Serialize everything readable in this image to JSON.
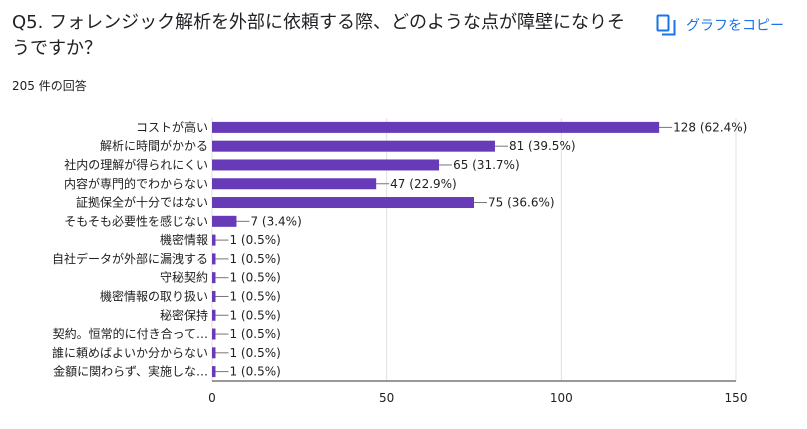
{
  "question": {
    "title": "Q5. フォレンジック解析を外部に依頼する際、どのような点が障壁になりそうですか？",
    "response_count": "205 件の回答"
  },
  "copy_button": {
    "label": "グラフをコピー",
    "icon": "copy-icon"
  },
  "colors": {
    "bar": "#673ab7",
    "accent": "#1a73e8",
    "grid": "#e0e0e0"
  },
  "chart_data": {
    "type": "bar",
    "orientation": "horizontal",
    "categories": [
      "コストが高い",
      "解析に時間がかかる",
      "社内の理解が得られにくい",
      "内容が専門的でわからない",
      "証拠保全が十分ではない",
      "そもそも必要性を感じない",
      "機密情報",
      "自社データが外部に漏洩する",
      "守秘契約",
      "機密情報の取り扱い",
      "秘密保持",
      "契約。恒常的に付き合って…",
      "誰に頼めばよいか分からない",
      "金額に関わらず、実施しな…"
    ],
    "values": [
      128,
      81,
      65,
      47,
      75,
      7,
      1,
      1,
      1,
      1,
      1,
      1,
      1,
      1
    ],
    "data_labels": [
      "128 (62.4%)",
      "81 (39.5%)",
      "65 (31.7%)",
      "47 (22.9%)",
      "75 (36.6%)",
      "7 (3.4%)",
      "1 (0.5%)",
      "1 (0.5%)",
      "1 (0.5%)",
      "1 (0.5%)",
      "1 (0.5%)",
      "1 (0.5%)",
      "1 (0.5%)",
      "1 (0.5%)"
    ],
    "xlim": [
      0,
      150
    ],
    "xticks": [
      "0",
      "50",
      "100",
      "150"
    ],
    "grid": true
  }
}
